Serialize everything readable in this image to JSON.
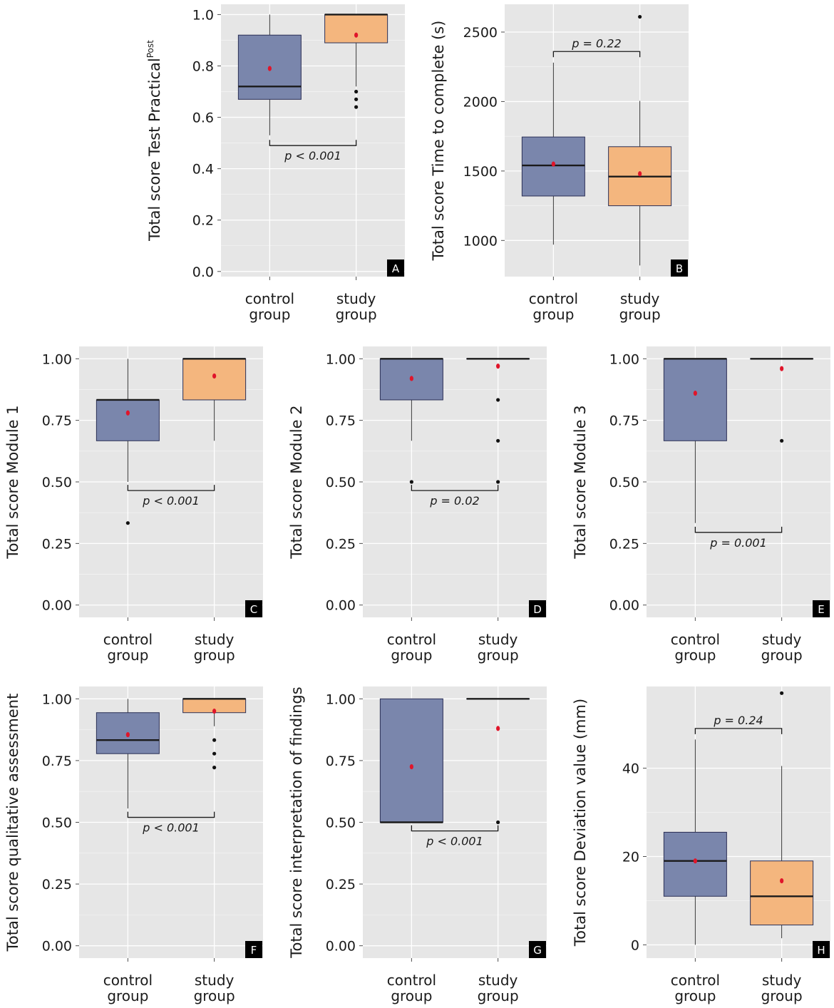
{
  "colors": {
    "panel_bg": "#e6e6e6",
    "grid": "#ffffff",
    "control_fill": "#7a86ac",
    "study_fill": "#f4b67e",
    "box_stroke": "#2b2f55",
    "median": "#1a1a1a",
    "mean": "#e0152a",
    "outlier": "#111111",
    "text": "#1a1a1a",
    "tick": "#4d4d4d",
    "label_bg": "#000000",
    "label_fg": "#ffffff"
  },
  "chart_data": [
    {
      "id": "A",
      "type": "boxplot",
      "tag": "A",
      "ylabel_main": "Total score Test Practical",
      "ylabel_sup": "Post",
      "ylim": [
        -0.02,
        1.04
      ],
      "yticks": [
        0.0,
        0.2,
        0.4,
        0.6,
        0.8,
        1.0
      ],
      "tick_labels": [
        "0.0",
        "0.2",
        "0.4",
        "0.6",
        "0.8",
        "1.0"
      ],
      "categories": [
        [
          "control",
          "group"
        ],
        [
          "study",
          "group"
        ]
      ],
      "boxes": [
        {
          "group": "control group",
          "whisker_low": 0.53,
          "q1": 0.67,
          "median": 0.72,
          "q3": 0.92,
          "whisker_high": 1.0,
          "mean": 0.79,
          "outliers": []
        },
        {
          "group": "study group",
          "whisker_low": 0.72,
          "q1": 0.89,
          "median": 1.0,
          "q3": 1.0,
          "whisker_high": 1.0,
          "mean": 0.92,
          "outliers": [
            0.7,
            0.67,
            0.64
          ]
        }
      ],
      "pvalue": {
        "label": "p < 0.001",
        "y": 0.49,
        "direction": "down"
      }
    },
    {
      "id": "B",
      "type": "boxplot",
      "tag": "B",
      "ylabel_main": "Total score Time to complete (s)",
      "ylabel_sup": "",
      "ylim": [
        740,
        2700
      ],
      "yticks": [
        1000,
        1500,
        2000,
        2500
      ],
      "tick_labels": [
        "1000",
        "1500",
        "2000",
        "2500"
      ],
      "categories": [
        [
          "control",
          "group"
        ],
        [
          "study",
          "group"
        ]
      ],
      "boxes": [
        {
          "group": "control group",
          "whisker_low": 970,
          "q1": 1320,
          "median": 1540,
          "q3": 1745,
          "whisker_high": 2280,
          "mean": 1550,
          "outliers": []
        },
        {
          "group": "study group",
          "whisker_low": 820,
          "q1": 1250,
          "median": 1460,
          "q3": 1675,
          "whisker_high": 2005,
          "mean": 1480,
          "outliers": [
            2610
          ]
        }
      ],
      "pvalue": {
        "label": "p = 0.22",
        "y": 2360,
        "direction": "up"
      }
    },
    {
      "id": "C",
      "type": "boxplot",
      "tag": "C",
      "ylabel_main": "Total score Module 1",
      "ylabel_sup": "",
      "ylim": [
        -0.05,
        1.05
      ],
      "yticks": [
        0.0,
        0.25,
        0.5,
        0.75,
        1.0
      ],
      "tick_labels": [
        "0.00",
        "0.25",
        "0.50",
        "0.75",
        "1.00"
      ],
      "categories": [
        [
          "control",
          "group"
        ],
        [
          "study",
          "group"
        ]
      ],
      "boxes": [
        {
          "group": "control group",
          "whisker_low": 0.5,
          "q1": 0.667,
          "median": 0.833,
          "q3": 0.833,
          "whisker_high": 1.0,
          "mean": 0.78,
          "outliers": [
            0.333
          ]
        },
        {
          "group": "study group",
          "whisker_low": 0.667,
          "q1": 0.833,
          "median": 1.0,
          "q3": 1.0,
          "whisker_high": 1.0,
          "mean": 0.93,
          "outliers": []
        }
      ],
      "pvalue": {
        "label": "p < 0.001",
        "y": 0.465,
        "direction": "down"
      }
    },
    {
      "id": "D",
      "type": "boxplot",
      "tag": "D",
      "ylabel_main": "Total score Module 2",
      "ylabel_sup": "",
      "ylim": [
        -0.05,
        1.05
      ],
      "yticks": [
        0.0,
        0.25,
        0.5,
        0.75,
        1.0
      ],
      "tick_labels": [
        "0.00",
        "0.25",
        "0.50",
        "0.75",
        "1.00"
      ],
      "categories": [
        [
          "control",
          "group"
        ],
        [
          "study",
          "group"
        ]
      ],
      "boxes": [
        {
          "group": "control group",
          "whisker_low": 0.667,
          "q1": 0.833,
          "median": 1.0,
          "q3": 1.0,
          "whisker_high": 1.0,
          "mean": 0.92,
          "outliers": [
            0.5
          ]
        },
        {
          "group": "study group",
          "whisker_low": 1.0,
          "q1": 1.0,
          "median": 1.0,
          "q3": 1.0,
          "whisker_high": 1.0,
          "mean": 0.97,
          "outliers": [
            0.833,
            0.667,
            0.5
          ]
        }
      ],
      "pvalue": {
        "label": "p = 0.02",
        "y": 0.465,
        "direction": "down"
      }
    },
    {
      "id": "E",
      "type": "boxplot",
      "tag": "E",
      "ylabel_main": "Total score Module 3",
      "ylabel_sup": "",
      "ylim": [
        -0.05,
        1.05
      ],
      "yticks": [
        0.0,
        0.25,
        0.5,
        0.75,
        1.0
      ],
      "tick_labels": [
        "0.00",
        "0.25",
        "0.50",
        "0.75",
        "1.00"
      ],
      "categories": [
        [
          "control",
          "group"
        ],
        [
          "study",
          "group"
        ]
      ],
      "boxes": [
        {
          "group": "control group",
          "whisker_low": 0.333,
          "q1": 0.667,
          "median": 1.0,
          "q3": 1.0,
          "whisker_high": 1.0,
          "mean": 0.86,
          "outliers": []
        },
        {
          "group": "study group",
          "whisker_low": 1.0,
          "q1": 1.0,
          "median": 1.0,
          "q3": 1.0,
          "whisker_high": 1.0,
          "mean": 0.96,
          "outliers": [
            0.667
          ]
        }
      ],
      "pvalue": {
        "label": "p = 0.001",
        "y": 0.295,
        "direction": "down"
      }
    },
    {
      "id": "F",
      "type": "boxplot",
      "tag": "F",
      "ylabel_main": "Total score qualitative assessment",
      "ylabel_sup": "",
      "ylim": [
        -0.05,
        1.05
      ],
      "yticks": [
        0.0,
        0.25,
        0.5,
        0.75,
        1.0
      ],
      "tick_labels": [
        "0.00",
        "0.25",
        "0.50",
        "0.75",
        "1.00"
      ],
      "categories": [
        [
          "control",
          "group"
        ],
        [
          "study",
          "group"
        ]
      ],
      "boxes": [
        {
          "group": "control group",
          "whisker_low": 0.556,
          "q1": 0.778,
          "median": 0.833,
          "q3": 0.944,
          "whisker_high": 1.0,
          "mean": 0.855,
          "outliers": []
        },
        {
          "group": "study group",
          "whisker_low": 0.889,
          "q1": 0.944,
          "median": 1.0,
          "q3": 1.0,
          "whisker_high": 1.0,
          "mean": 0.95,
          "outliers": [
            0.833,
            0.778,
            0.722
          ]
        }
      ],
      "pvalue": {
        "label": "p < 0.001",
        "y": 0.52,
        "direction": "down"
      }
    },
    {
      "id": "G",
      "type": "boxplot",
      "tag": "G",
      "ylabel_main": "Total score interpretation of findings",
      "ylabel_sup": "",
      "ylim": [
        -0.05,
        1.05
      ],
      "yticks": [
        0.0,
        0.25,
        0.5,
        0.75,
        1.0
      ],
      "tick_labels": [
        "0.00",
        "0.25",
        "0.50",
        "0.75",
        "1.00"
      ],
      "categories": [
        [
          "control",
          "group"
        ],
        [
          "study",
          "group"
        ]
      ],
      "boxes": [
        {
          "group": "control group",
          "whisker_low": 0.5,
          "q1": 0.5,
          "median": 0.5,
          "q3": 1.0,
          "whisker_high": 1.0,
          "mean": 0.725,
          "outliers": []
        },
        {
          "group": "study group",
          "whisker_low": 1.0,
          "q1": 1.0,
          "median": 1.0,
          "q3": 1.0,
          "whisker_high": 1.0,
          "mean": 0.88,
          "outliers": [
            0.5
          ]
        }
      ],
      "pvalue": {
        "label": "p < 0.001",
        "y": 0.465,
        "direction": "down"
      }
    },
    {
      "id": "H",
      "type": "boxplot",
      "tag": "H",
      "ylabel_main": "Total score Deviation value (mm)",
      "ylabel_sup": "",
      "ylim": [
        -3,
        58.5
      ],
      "yticks": [
        0,
        20,
        40
      ],
      "tick_labels": [
        "0",
        "20",
        "40"
      ],
      "categories": [
        [
          "control",
          "group"
        ],
        [
          "study",
          "group"
        ]
      ],
      "boxes": [
        {
          "group": "control group",
          "whisker_low": 0,
          "q1": 11,
          "median": 19,
          "q3": 25.5,
          "whisker_high": 46.5,
          "mean": 19,
          "outliers": []
        },
        {
          "group": "study group",
          "whisker_low": 1.5,
          "q1": 4.5,
          "median": 11,
          "q3": 19,
          "whisker_high": 40.5,
          "mean": 14.5,
          "outliers": [
            57
          ]
        }
      ],
      "pvalue": {
        "label": "p = 0.24",
        "y": 49,
        "direction": "up"
      }
    }
  ]
}
